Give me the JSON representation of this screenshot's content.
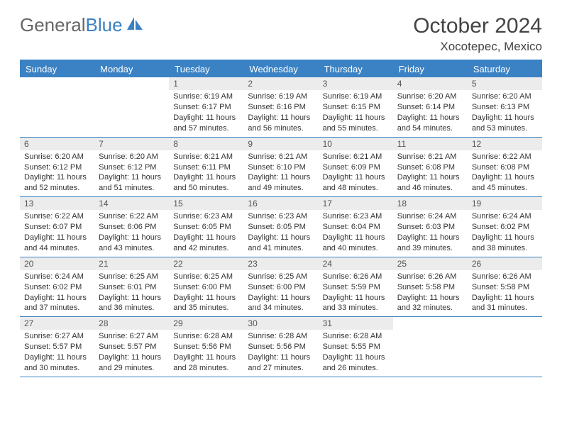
{
  "logo": {
    "text_gray": "General",
    "text_blue": "Blue"
  },
  "title": "October 2024",
  "location": "Xocotepec, Mexico",
  "colors": {
    "header_bg": "#3b82c4",
    "header_text": "#ffffff",
    "day_bar_bg": "#ececec",
    "border": "#3b82c4",
    "text": "#333333",
    "logo_gray": "#666666",
    "logo_blue": "#3b82c4"
  },
  "weekdays": [
    "Sunday",
    "Monday",
    "Tuesday",
    "Wednesday",
    "Thursday",
    "Friday",
    "Saturday"
  ],
  "layout": {
    "first_weekday_index": 2,
    "days_in_month": 31
  },
  "days": [
    {
      "n": 1,
      "sunrise": "6:19 AM",
      "sunset": "6:17 PM",
      "daylight": "11 hours and 57 minutes."
    },
    {
      "n": 2,
      "sunrise": "6:19 AM",
      "sunset": "6:16 PM",
      "daylight": "11 hours and 56 minutes."
    },
    {
      "n": 3,
      "sunrise": "6:19 AM",
      "sunset": "6:15 PM",
      "daylight": "11 hours and 55 minutes."
    },
    {
      "n": 4,
      "sunrise": "6:20 AM",
      "sunset": "6:14 PM",
      "daylight": "11 hours and 54 minutes."
    },
    {
      "n": 5,
      "sunrise": "6:20 AM",
      "sunset": "6:13 PM",
      "daylight": "11 hours and 53 minutes."
    },
    {
      "n": 6,
      "sunrise": "6:20 AM",
      "sunset": "6:12 PM",
      "daylight": "11 hours and 52 minutes."
    },
    {
      "n": 7,
      "sunrise": "6:20 AM",
      "sunset": "6:12 PM",
      "daylight": "11 hours and 51 minutes."
    },
    {
      "n": 8,
      "sunrise": "6:21 AM",
      "sunset": "6:11 PM",
      "daylight": "11 hours and 50 minutes."
    },
    {
      "n": 9,
      "sunrise": "6:21 AM",
      "sunset": "6:10 PM",
      "daylight": "11 hours and 49 minutes."
    },
    {
      "n": 10,
      "sunrise": "6:21 AM",
      "sunset": "6:09 PM",
      "daylight": "11 hours and 48 minutes."
    },
    {
      "n": 11,
      "sunrise": "6:21 AM",
      "sunset": "6:08 PM",
      "daylight": "11 hours and 46 minutes."
    },
    {
      "n": 12,
      "sunrise": "6:22 AM",
      "sunset": "6:08 PM",
      "daylight": "11 hours and 45 minutes."
    },
    {
      "n": 13,
      "sunrise": "6:22 AM",
      "sunset": "6:07 PM",
      "daylight": "11 hours and 44 minutes."
    },
    {
      "n": 14,
      "sunrise": "6:22 AM",
      "sunset": "6:06 PM",
      "daylight": "11 hours and 43 minutes."
    },
    {
      "n": 15,
      "sunrise": "6:23 AM",
      "sunset": "6:05 PM",
      "daylight": "11 hours and 42 minutes."
    },
    {
      "n": 16,
      "sunrise": "6:23 AM",
      "sunset": "6:05 PM",
      "daylight": "11 hours and 41 minutes."
    },
    {
      "n": 17,
      "sunrise": "6:23 AM",
      "sunset": "6:04 PM",
      "daylight": "11 hours and 40 minutes."
    },
    {
      "n": 18,
      "sunrise": "6:24 AM",
      "sunset": "6:03 PM",
      "daylight": "11 hours and 39 minutes."
    },
    {
      "n": 19,
      "sunrise": "6:24 AM",
      "sunset": "6:02 PM",
      "daylight": "11 hours and 38 minutes."
    },
    {
      "n": 20,
      "sunrise": "6:24 AM",
      "sunset": "6:02 PM",
      "daylight": "11 hours and 37 minutes."
    },
    {
      "n": 21,
      "sunrise": "6:25 AM",
      "sunset": "6:01 PM",
      "daylight": "11 hours and 36 minutes."
    },
    {
      "n": 22,
      "sunrise": "6:25 AM",
      "sunset": "6:00 PM",
      "daylight": "11 hours and 35 minutes."
    },
    {
      "n": 23,
      "sunrise": "6:25 AM",
      "sunset": "6:00 PM",
      "daylight": "11 hours and 34 minutes."
    },
    {
      "n": 24,
      "sunrise": "6:26 AM",
      "sunset": "5:59 PM",
      "daylight": "11 hours and 33 minutes."
    },
    {
      "n": 25,
      "sunrise": "6:26 AM",
      "sunset": "5:58 PM",
      "daylight": "11 hours and 32 minutes."
    },
    {
      "n": 26,
      "sunrise": "6:26 AM",
      "sunset": "5:58 PM",
      "daylight": "11 hours and 31 minutes."
    },
    {
      "n": 27,
      "sunrise": "6:27 AM",
      "sunset": "5:57 PM",
      "daylight": "11 hours and 30 minutes."
    },
    {
      "n": 28,
      "sunrise": "6:27 AM",
      "sunset": "5:57 PM",
      "daylight": "11 hours and 29 minutes."
    },
    {
      "n": 29,
      "sunrise": "6:28 AM",
      "sunset": "5:56 PM",
      "daylight": "11 hours and 28 minutes."
    },
    {
      "n": 30,
      "sunrise": "6:28 AM",
      "sunset": "5:56 PM",
      "daylight": "11 hours and 27 minutes."
    },
    {
      "n": 31,
      "sunrise": "6:28 AM",
      "sunset": "5:55 PM",
      "daylight": "11 hours and 26 minutes."
    }
  ],
  "labels": {
    "sunrise": "Sunrise:",
    "sunset": "Sunset:",
    "daylight": "Daylight:"
  }
}
